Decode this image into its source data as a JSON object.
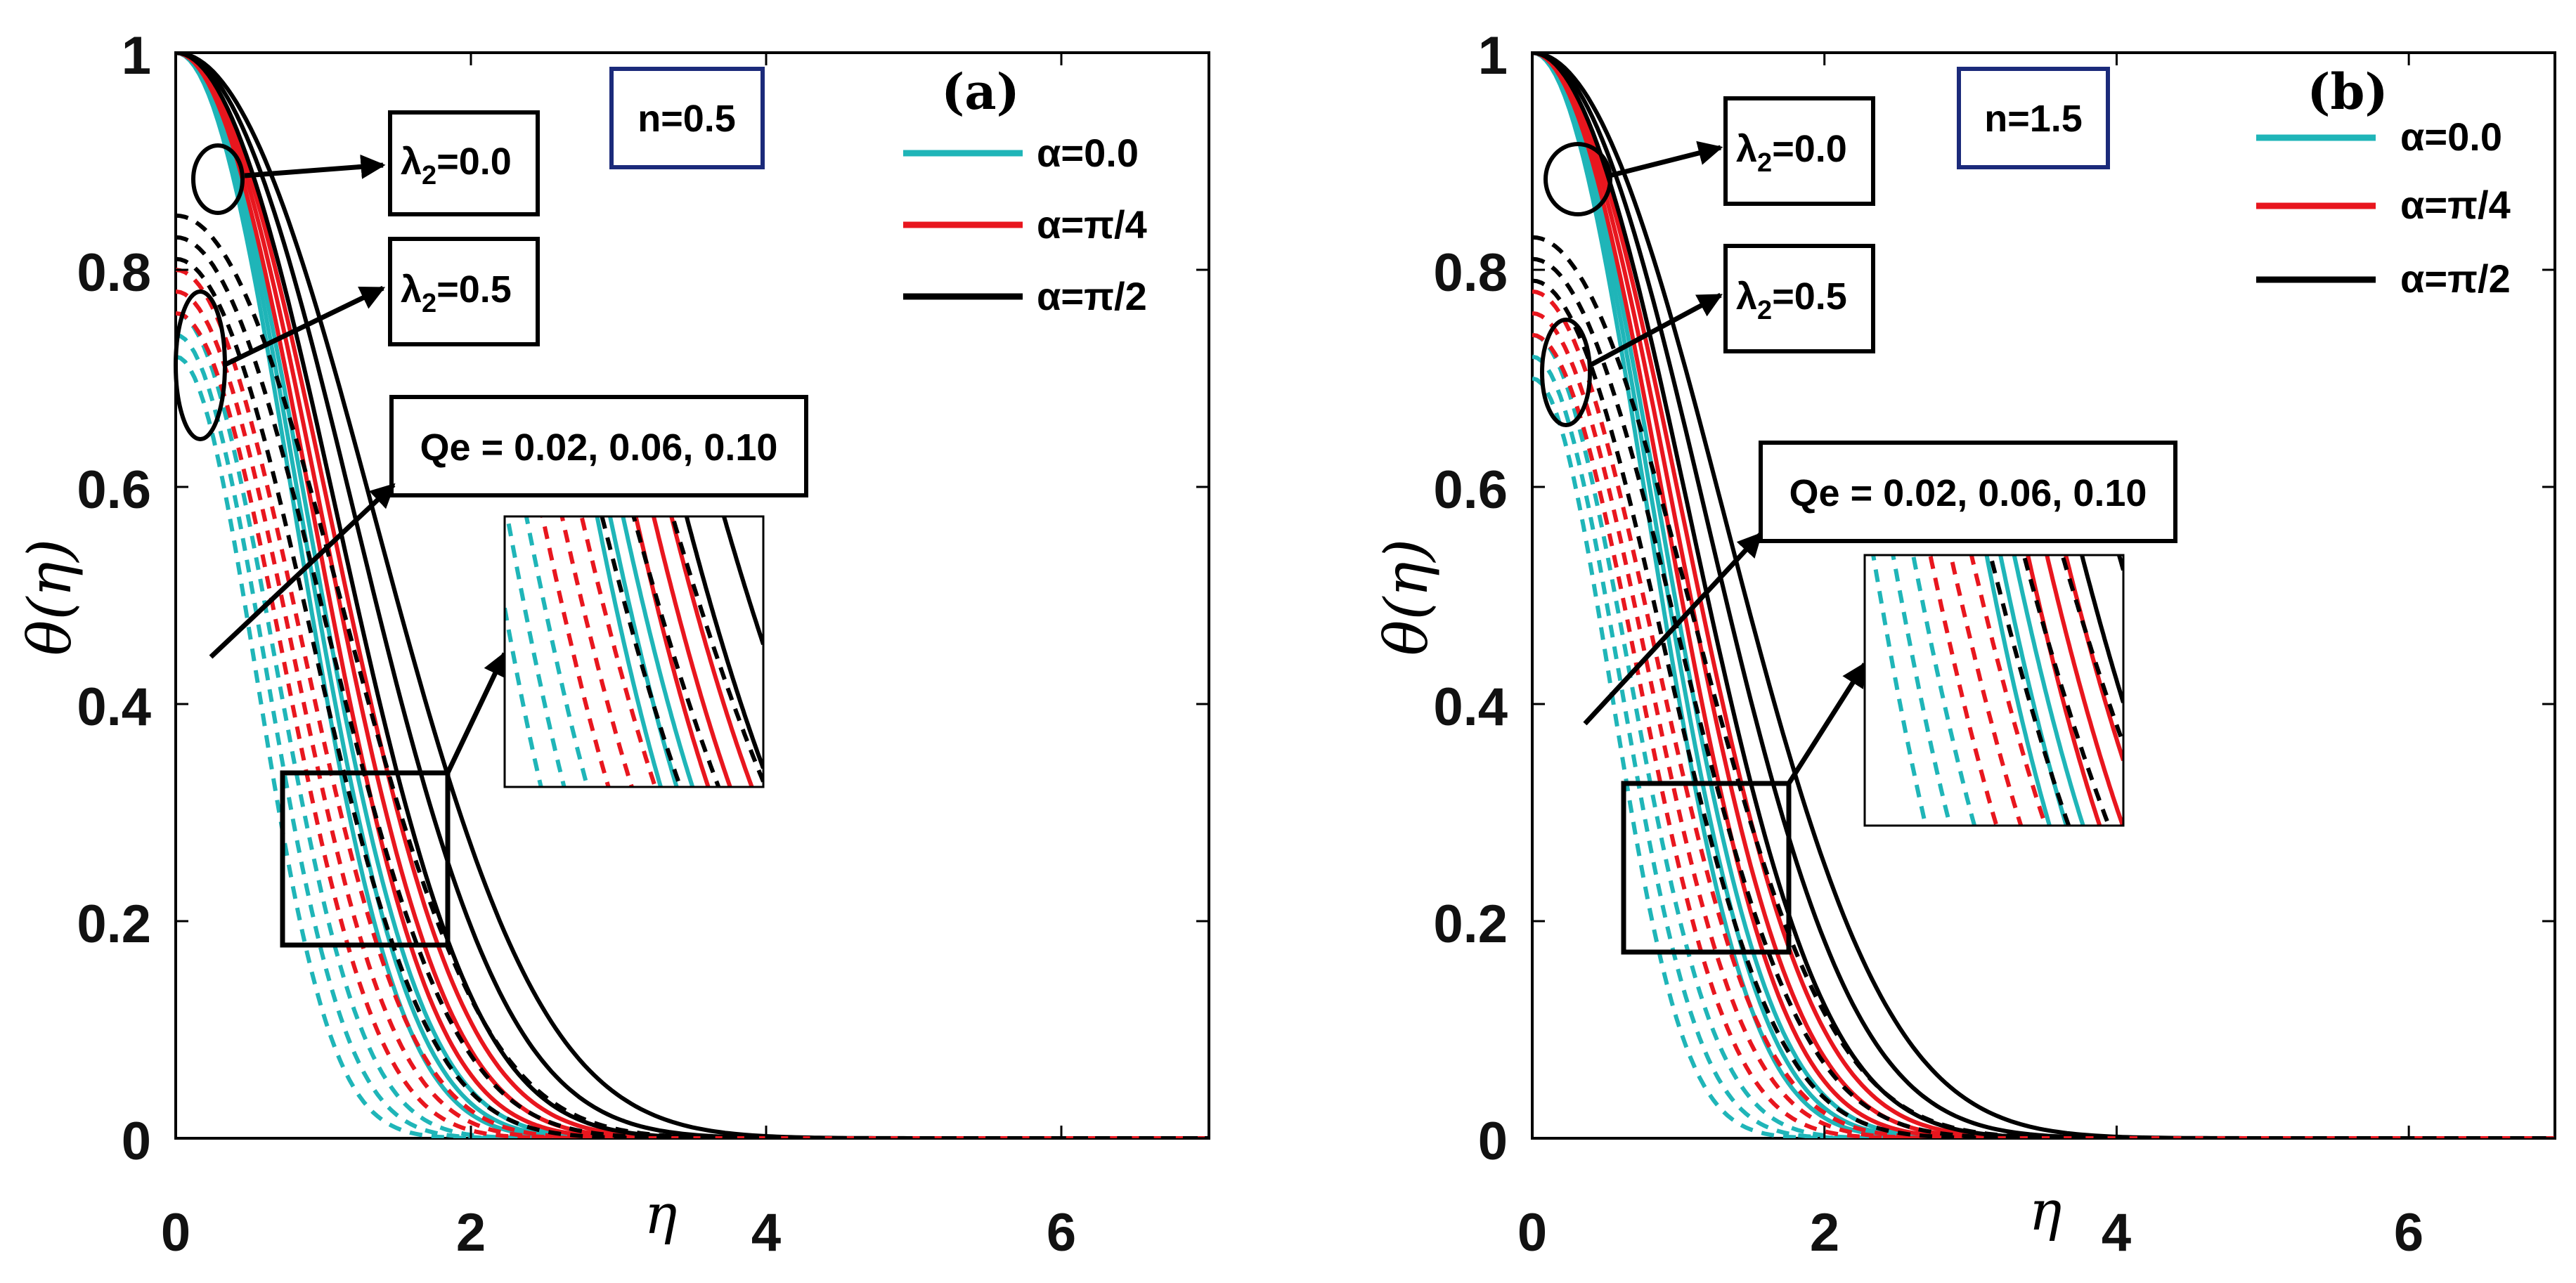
{
  "figure": {
    "colors": {
      "cyan": "#1fb5b8",
      "red": "#e8161e",
      "black": "#000000",
      "panelbox": "#1b2a7a"
    },
    "y_ticks": [
      "0",
      "0.2",
      "0.4",
      "0.6",
      "0.8",
      "1"
    ],
    "x_ticks": [
      "0",
      "2",
      "4",
      "6"
    ],
    "ylabel": "θ(η)",
    "xlabel": "η",
    "legend": [
      "α=0.0",
      "α=π/4",
      "α=π/2"
    ],
    "annotation_lambda_a": "λ",
    "annotation_lambda_sub": "2",
    "annotation_lambda00": "=0.0",
    "annotation_lambda05": "=0.5",
    "annotation_qe": "Qe = 0.02, 0.06, 0.10"
  },
  "chart_data": [
    {
      "type": "line",
      "panel": "(a)",
      "param_label": "n=0.5",
      "xlabel": "η",
      "ylabel": "θ(η)",
      "xlim": [
        0,
        7
      ],
      "ylim": [
        0,
        1
      ],
      "legend": [
        "α=0.0",
        "α=π/4",
        "α=π/2"
      ],
      "series_note": "Solid lines: λ2=0.0, dashed lines: λ2=0.5; three curves per group for Qe = 0.02, 0.06, 0.10",
      "series": [
        {
          "name": "α=0.0, λ2=0.0, Qe=0.02",
          "alpha": "α=0.0",
          "lambda2": 0.0,
          "qe": 0.02,
          "theta0": 1.0,
          "eta_half": 0.95
        },
        {
          "name": "α=0.0, λ2=0.0, Qe=0.06",
          "alpha": "α=0.0",
          "lambda2": 0.0,
          "qe": 0.06,
          "theta0": 1.0,
          "eta_half": 1.0
        },
        {
          "name": "α=0.0, λ2=0.0, Qe=0.10",
          "alpha": "α=0.0",
          "lambda2": 0.0,
          "qe": 0.1,
          "theta0": 1.0,
          "eta_half": 1.05
        },
        {
          "name": "α=π/4, λ2=0.0, Qe=0.02",
          "alpha": "α=π/4",
          "lambda2": 0.0,
          "qe": 0.02,
          "theta0": 1.0,
          "eta_half": 1.1
        },
        {
          "name": "α=π/4, λ2=0.0, Qe=0.06",
          "alpha": "α=π/4",
          "lambda2": 0.0,
          "qe": 0.06,
          "theta0": 1.0,
          "eta_half": 1.17
        },
        {
          "name": "α=π/4, λ2=0.0, Qe=0.10",
          "alpha": "α=π/4",
          "lambda2": 0.0,
          "qe": 0.1,
          "theta0": 1.0,
          "eta_half": 1.24
        },
        {
          "name": "α=π/2, λ2=0.0, Qe=0.02",
          "alpha": "α=π/2",
          "lambda2": 0.0,
          "qe": 0.02,
          "theta0": 1.0,
          "eta_half": 1.3
        },
        {
          "name": "α=π/2, λ2=0.0, Qe=0.06",
          "alpha": "α=π/2",
          "lambda2": 0.0,
          "qe": 0.06,
          "theta0": 1.0,
          "eta_half": 1.45
        },
        {
          "name": "α=π/2, λ2=0.0, Qe=0.10",
          "alpha": "α=π/2",
          "lambda2": 0.0,
          "qe": 0.1,
          "theta0": 1.0,
          "eta_half": 1.62
        },
        {
          "name": "α=0.0, λ2=0.5, Qe=0.02",
          "alpha": "α=0.0",
          "lambda2": 0.5,
          "qe": 0.02,
          "theta0": 0.72,
          "eta_half": 0.65
        },
        {
          "name": "α=0.0, λ2=0.5, Qe=0.06",
          "alpha": "α=0.0",
          "lambda2": 0.5,
          "qe": 0.06,
          "theta0": 0.74,
          "eta_half": 0.72
        },
        {
          "name": "α=0.0, λ2=0.5, Qe=0.10",
          "alpha": "α=0.0",
          "lambda2": 0.5,
          "qe": 0.1,
          "theta0": 0.76,
          "eta_half": 0.79
        },
        {
          "name": "α=π/4, λ2=0.5, Qe=0.02",
          "alpha": "α=π/4",
          "lambda2": 0.5,
          "qe": 0.02,
          "theta0": 0.76,
          "eta_half": 0.86
        },
        {
          "name": "α=π/4, λ2=0.5, Qe=0.06",
          "alpha": "α=π/4",
          "lambda2": 0.5,
          "qe": 0.06,
          "theta0": 0.78,
          "eta_half": 0.93
        },
        {
          "name": "α=π/4, λ2=0.5, Qe=0.10",
          "alpha": "α=π/4",
          "lambda2": 0.5,
          "qe": 0.1,
          "theta0": 0.8,
          "eta_half": 1.0
        },
        {
          "name": "α=π/2, λ2=0.5, Qe=0.02",
          "alpha": "α=π/2",
          "lambda2": 0.5,
          "qe": 0.02,
          "theta0": 0.81,
          "eta_half": 1.08
        },
        {
          "name": "α=π/2, λ2=0.5, Qe=0.06",
          "alpha": "α=π/2",
          "lambda2": 0.5,
          "qe": 0.06,
          "theta0": 0.83,
          "eta_half": 1.2
        },
        {
          "name": "α=π/2, λ2=0.5, Qe=0.10",
          "alpha": "α=π/2",
          "lambda2": 0.5,
          "qe": 0.1,
          "theta0": 0.85,
          "eta_half": 1.35
        }
      ]
    },
    {
      "type": "line",
      "panel": "(b)",
      "param_label": "n=1.5",
      "xlabel": "η",
      "ylabel": "θ(η)",
      "xlim": [
        0,
        7
      ],
      "ylim": [
        0,
        1
      ],
      "legend": [
        "α=0.0",
        "α=π/4",
        "α=π/2"
      ],
      "series_note": "Solid lines: λ2=0.0, dashed lines: λ2=0.5; three curves per group for Qe = 0.02, 0.06, 0.10",
      "series": [
        {
          "name": "α=0.0, λ2=0.0, Qe=0.02",
          "alpha": "α=0.0",
          "lambda2": 0.0,
          "qe": 0.02,
          "theta0": 1.0,
          "eta_half": 0.93
        },
        {
          "name": "α=0.0, λ2=0.0, Qe=0.06",
          "alpha": "α=0.0",
          "lambda2": 0.0,
          "qe": 0.06,
          "theta0": 1.0,
          "eta_half": 0.98
        },
        {
          "name": "α=0.0, λ2=0.0, Qe=0.10",
          "alpha": "α=0.0",
          "lambda2": 0.0,
          "qe": 0.1,
          "theta0": 1.0,
          "eta_half": 1.03
        },
        {
          "name": "α=π/4, λ2=0.0, Qe=0.02",
          "alpha": "α=π/4",
          "lambda2": 0.0,
          "qe": 0.02,
          "theta0": 1.0,
          "eta_half": 1.08
        },
        {
          "name": "α=π/4, λ2=0.0, Qe=0.06",
          "alpha": "α=π/4",
          "lambda2": 0.0,
          "qe": 0.06,
          "theta0": 1.0,
          "eta_half": 1.15
        },
        {
          "name": "α=π/4, λ2=0.0, Qe=0.10",
          "alpha": "α=π/4",
          "lambda2": 0.0,
          "qe": 0.1,
          "theta0": 1.0,
          "eta_half": 1.22
        },
        {
          "name": "α=π/2, λ2=0.0, Qe=0.02",
          "alpha": "α=π/2",
          "lambda2": 0.0,
          "qe": 0.02,
          "theta0": 1.0,
          "eta_half": 1.28
        },
        {
          "name": "α=π/2, λ2=0.0, Qe=0.06",
          "alpha": "α=π/2",
          "lambda2": 0.0,
          "qe": 0.06,
          "theta0": 1.0,
          "eta_half": 1.42
        },
        {
          "name": "α=π/2, λ2=0.0, Qe=0.10",
          "alpha": "α=π/2",
          "lambda2": 0.0,
          "qe": 0.1,
          "theta0": 1.0,
          "eta_half": 1.58
        },
        {
          "name": "α=0.0, λ2=0.5, Qe=0.02",
          "alpha": "α=0.0",
          "lambda2": 0.5,
          "qe": 0.02,
          "theta0": 0.7,
          "eta_half": 0.64
        },
        {
          "name": "α=0.0, λ2=0.5, Qe=0.06",
          "alpha": "α=0.0",
          "lambda2": 0.5,
          "qe": 0.06,
          "theta0": 0.72,
          "eta_half": 0.71
        },
        {
          "name": "α=0.0, λ2=0.5, Qe=0.10",
          "alpha": "α=0.0",
          "lambda2": 0.5,
          "qe": 0.1,
          "theta0": 0.74,
          "eta_half": 0.78
        },
        {
          "name": "α=π/4, λ2=0.5, Qe=0.02",
          "alpha": "α=π/4",
          "lambda2": 0.5,
          "qe": 0.02,
          "theta0": 0.74,
          "eta_half": 0.85
        },
        {
          "name": "α=π/4, λ2=0.5, Qe=0.06",
          "alpha": "α=π/4",
          "lambda2": 0.5,
          "qe": 0.06,
          "theta0": 0.76,
          "eta_half": 0.92
        },
        {
          "name": "α=π/4, λ2=0.5, Qe=0.10",
          "alpha": "α=π/4",
          "lambda2": 0.5,
          "qe": 0.1,
          "theta0": 0.78,
          "eta_half": 0.99
        },
        {
          "name": "α=π/2, λ2=0.5, Qe=0.02",
          "alpha": "α=π/2",
          "lambda2": 0.5,
          "qe": 0.02,
          "theta0": 0.79,
          "eta_half": 1.06
        },
        {
          "name": "α=π/2, λ2=0.5, Qe=0.06",
          "alpha": "α=π/2",
          "lambda2": 0.5,
          "qe": 0.06,
          "theta0": 0.81,
          "eta_half": 1.18
        },
        {
          "name": "α=π/2, λ2=0.5, Qe=0.10",
          "alpha": "α=π/2",
          "lambda2": 0.5,
          "qe": 0.1,
          "theta0": 0.83,
          "eta_half": 1.32
        }
      ]
    }
  ]
}
